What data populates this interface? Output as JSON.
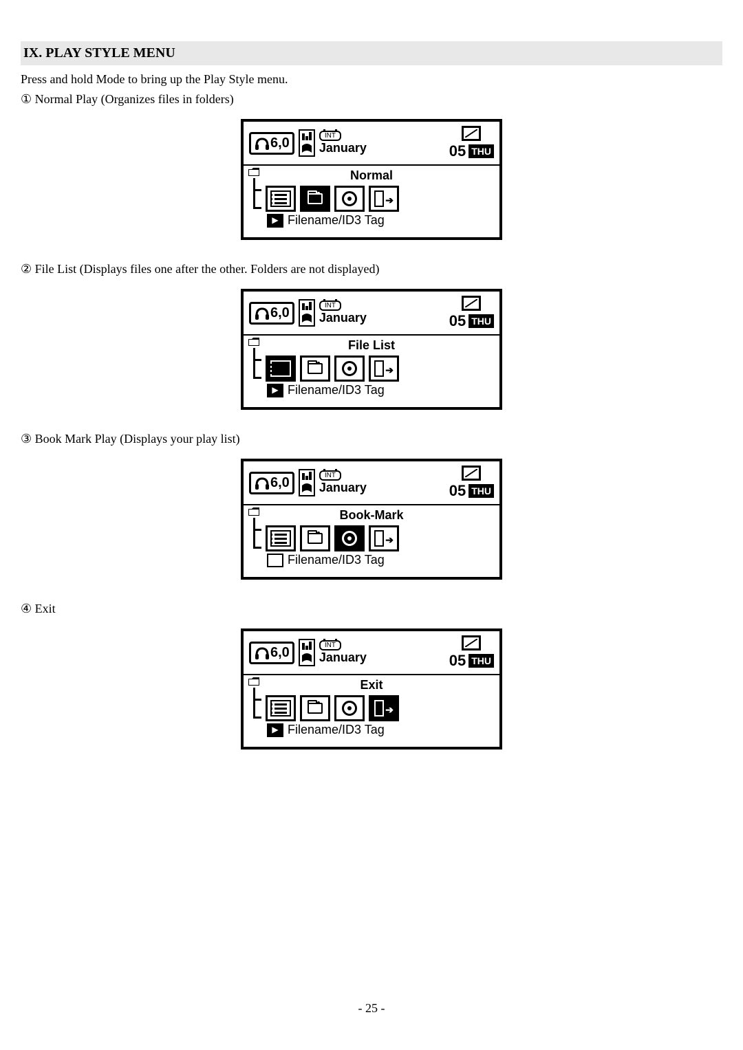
{
  "section": {
    "title": "IX. PLAY STYLE MENU",
    "instruction": "Press and hold Mode to bring up the Play Style menu."
  },
  "items": [
    {
      "num": "①",
      "text": "Normal Play (Organizes files in folders)",
      "mode_label": "Normal",
      "selected_index": 1,
      "bottom_icon_style": "play"
    },
    {
      "num": "②",
      "text": "File List (Displays files one after the other. Folders are not displayed)",
      "mode_label": "File List",
      "selected_index": 0,
      "bottom_icon_style": "play"
    },
    {
      "num": "③",
      "text": "Book Mark Play (Displays your play list)",
      "mode_label": "Book-Mark",
      "selected_index": 2,
      "bottom_icon_style": "outline"
    },
    {
      "num": "④",
      "text": "Exit",
      "mode_label": "Exit",
      "selected_index": 3,
      "bottom_icon_style": "play"
    }
  ],
  "screen": {
    "headphone_value": "6,0",
    "calendar_label": "INT",
    "month": "January",
    "day_num": "05",
    "day_name": "THU",
    "filename": "Filename/ID3 Tag"
  },
  "page_number": "- 25 -"
}
